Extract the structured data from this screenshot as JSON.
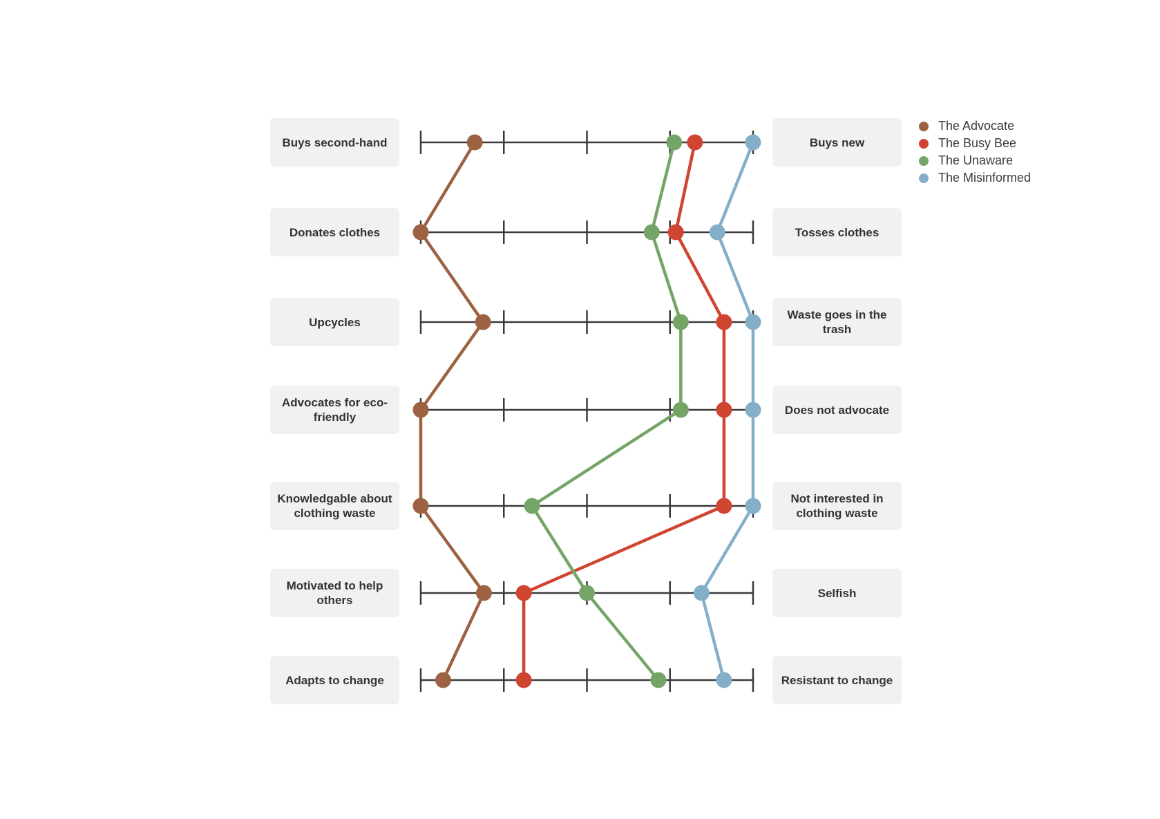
{
  "chart_data": {
    "type": "line",
    "title": "",
    "scale_ticks": 5,
    "xlim": [
      0,
      4
    ],
    "traits": [
      {
        "left": "Buys second-hand",
        "right": "Buys new"
      },
      {
        "left": "Donates clothes",
        "right": "Tosses clothes"
      },
      {
        "left": "Upcycles",
        "right": "Waste goes in the trash"
      },
      {
        "left": "Advocates for eco-friendly",
        "right": "Does not advocate"
      },
      {
        "left": "Knowledgable about clothing waste",
        "right": "Not interested in clothing waste"
      },
      {
        "left": "Motivated to help others",
        "right": "Selfish"
      },
      {
        "left": "Adapts to change",
        "right": "Resistant to change"
      }
    ],
    "series": [
      {
        "name": "The Advocate",
        "color": "#9c6241",
        "values": [
          0.65,
          0.0,
          0.75,
          0.0,
          0.0,
          0.76,
          0.27
        ]
      },
      {
        "name": "The Busy Bee",
        "color": "#cf4532",
        "values": [
          3.3,
          3.07,
          3.65,
          3.65,
          3.65,
          1.24,
          1.24
        ]
      },
      {
        "name": "The Unaware",
        "color": "#75a566",
        "values": [
          3.05,
          2.78,
          3.13,
          3.13,
          1.34,
          2.0,
          2.86
        ]
      },
      {
        "name": "The Misinformed",
        "color": "#84afc9",
        "values": [
          4.0,
          3.57,
          4.0,
          4.0,
          4.0,
          3.38,
          3.65
        ]
      }
    ],
    "legend_position": "top-right",
    "grid": false
  },
  "colors": {
    "axis": "#3a3a3a",
    "box_bg": "#f1f1f1"
  }
}
